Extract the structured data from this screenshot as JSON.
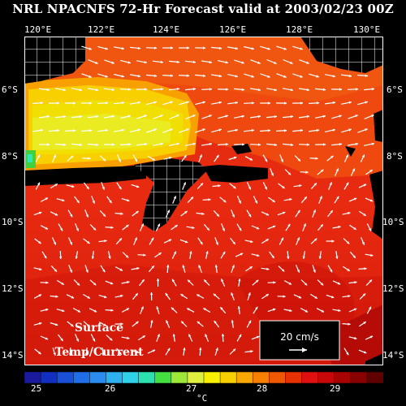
{
  "title": "NRL NPACNFS 72-Hr Forecast valid at 2003/02/23 00Z",
  "lon_ticks": [
    "120°E",
    "122°E",
    "124°E",
    "126°E",
    "128°E",
    "130°E"
  ],
  "lat_ticks": [
    "6°S",
    "8°S",
    "10°S",
    "12°S",
    "14°S"
  ],
  "map": {
    "label_line1": "Surface",
    "label_line2": "Temp/Current",
    "scale_text": "20 cm/s",
    "land_color": "#000000",
    "arrow_color": "#ffffff"
  },
  "colorbar": {
    "ticks": [
      "25",
      "26",
      "27",
      "28",
      "29"
    ],
    "unit": "°C",
    "colors": [
      "#1a1a9e",
      "#1230c0",
      "#1a4fd8",
      "#1f6ee8",
      "#2a8cf0",
      "#2fb0ef",
      "#30d0e8",
      "#2ee0b0",
      "#44e040",
      "#9ee83a",
      "#e0f040",
      "#f8f000",
      "#f8d000",
      "#f8a800",
      "#f88000",
      "#f05800",
      "#e83000",
      "#e01010",
      "#c80808",
      "#a80404",
      "#880000",
      "#600000"
    ]
  }
}
